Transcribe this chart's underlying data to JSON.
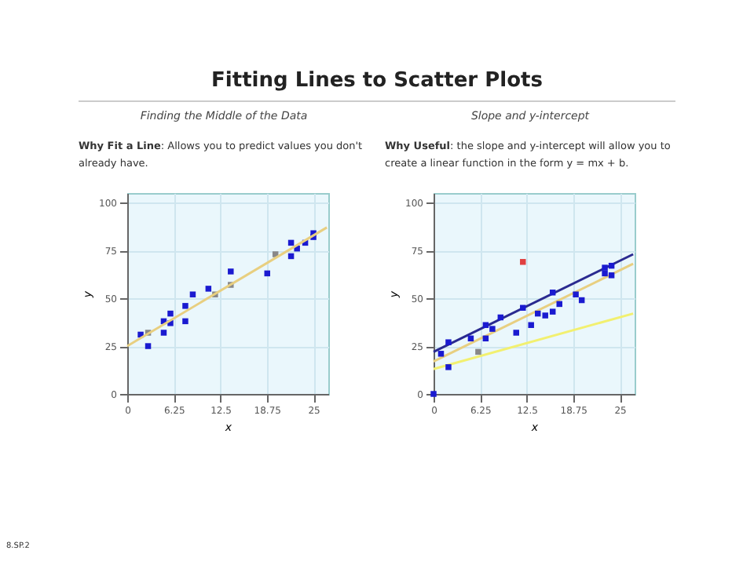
{
  "chart_data": [
    {
      "type": "scatter",
      "title": "Fitting Lines to Scatter Plots",
      "subtitle": "Finding the Middle of the Data",
      "xlabel": "x",
      "ylabel": "y",
      "annotations": [
        "Why Fit a Line: Allows you to predict values you don't already have.",
        "8.SP.2"
      ],
      "xlim": [
        0,
        27
      ],
      "ylim": [
        0,
        105
      ],
      "xticks": [
        0,
        6.25,
        12.5,
        18.75,
        25
      ],
      "yticks": [
        0,
        25,
        50,
        75,
        100
      ],
      "grid": true,
      "marker": "square",
      "series": [
        {
          "color": "#1a1ad0",
          "x": [
            1.8,
            2.8,
            4.9,
            4.9,
            5.8,
            5.8,
            7.8,
            7.8,
            8.8,
            10.9,
            13.9,
            18.8,
            22,
            22,
            22.8,
            23.9,
            25,
            25
          ],
          "values": [
            31,
            25,
            38,
            32,
            42,
            37,
            46,
            38,
            52,
            55,
            64,
            63,
            79,
            72,
            76,
            79,
            84,
            82
          ]
        },
        {
          "color": "#888888",
          "x": [
            2.8,
            11.8,
            13.9,
            19.9
          ],
          "values": [
            32,
            52,
            57,
            73
          ]
        },
        {
          "type": "line",
          "marker": "none",
          "color": "#e8cf80",
          "x": [
            0,
            26.8
          ],
          "values": [
            25,
            87
          ]
        }
      ]
    },
    {
      "type": "scatter",
      "subtitle": "Slope and y-intercept",
      "xlabel": "x",
      "ylabel": "y",
      "annotations": [
        "Why Useful: the slope and y-intercept will allow you to create a linear function in the form y = mx + b."
      ],
      "xlim": [
        0,
        27
      ],
      "ylim": [
        0,
        105
      ],
      "xticks": [
        0,
        6.25,
        12.5,
        18.75,
        25
      ],
      "yticks": [
        0,
        25,
        50,
        75,
        100
      ],
      "grid": true,
      "marker": "square",
      "series": [
        {
          "type": "line",
          "marker": "none",
          "color": "#f2f070",
          "x": [
            0,
            26.8
          ],
          "values": [
            13,
            42
          ]
        },
        {
          "type": "line",
          "marker": "none",
          "color": "#e8cf80",
          "x": [
            0,
            26.8
          ],
          "values": [
            17,
            68
          ]
        },
        {
          "type": "line",
          "marker": "none",
          "color": "#2a2a90",
          "x": [
            0,
            26.8
          ],
          "values": [
            22,
            73
          ]
        },
        {
          "color": "#1a1ad0",
          "x": [
            0,
            1,
            2,
            2,
            5,
            7,
            7,
            7.9,
            9,
            11.1,
            12,
            13.1,
            14,
            15,
            16,
            16,
            16.9,
            19.1,
            19.9,
            23,
            23,
            23.9,
            23.9
          ],
          "values": [
            0,
            21,
            27,
            14,
            29,
            36,
            29,
            34,
            40,
            32,
            45,
            36,
            42,
            41,
            43,
            53,
            47,
            52,
            49,
            66,
            63,
            62,
            67
          ]
        },
        {
          "color": "#888888",
          "x": [
            6
          ],
          "values": [
            22
          ]
        },
        {
          "color": "#e04040",
          "x": [
            12
          ],
          "values": [
            69
          ]
        }
      ]
    }
  ]
}
